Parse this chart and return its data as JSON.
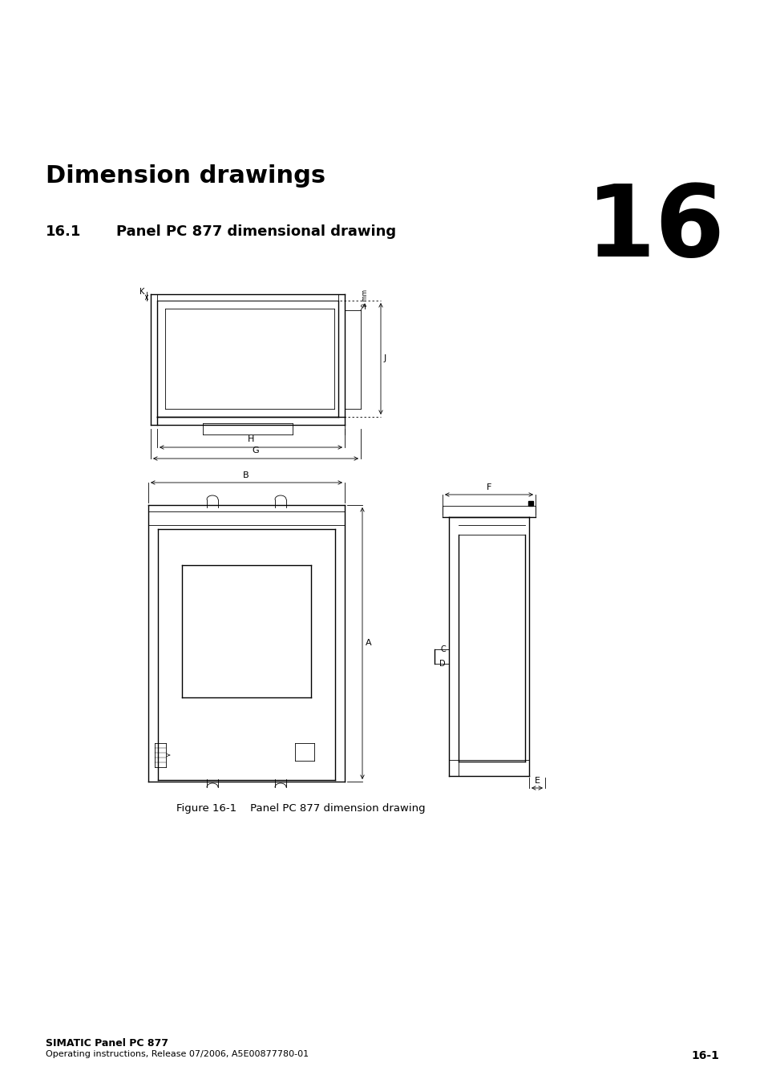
{
  "bg_color": "#ffffff",
  "title_chapter": "Dimension drawings",
  "chapter_number": "16",
  "section_number": "16.1",
  "section_text": "Panel PC 877 dimensional drawing",
  "figure_caption": "Figure 16-1    Panel PC 877 dimension drawing",
  "footer_line1": "SIMATIC Panel PC 877",
  "footer_line2": "Operating instructions, Release 07/2006, A5E00877780-01",
  "footer_right": "16-1",
  "lc": "#000000",
  "lw": 1.0,
  "tlw": 0.6
}
